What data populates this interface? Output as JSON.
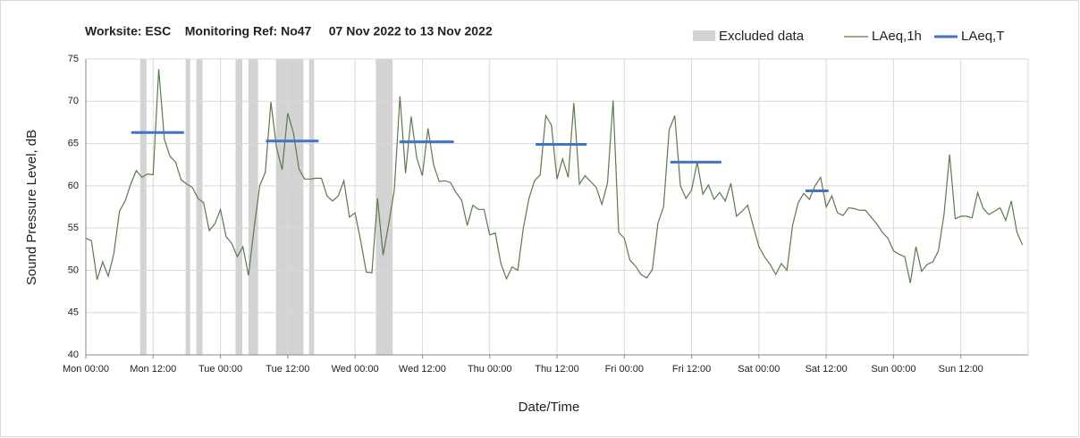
{
  "chart_data": {
    "type": "line",
    "title": "Worksite: ESC    Monitoring Ref: No47     07 Nov 2022 to 13 Nov 2022",
    "xlabel": "Date/Time",
    "ylabel": "Sound Pressure Level, dB",
    "xlim": [
      0,
      168
    ],
    "xticks": [
      {
        "value": 0,
        "label": "Mon 00:00"
      },
      {
        "value": 12,
        "label": "Mon 12:00"
      },
      {
        "value": 24,
        "label": "Tue 00:00"
      },
      {
        "value": 36,
        "label": "Tue 12:00"
      },
      {
        "value": 48,
        "label": "Wed 00:00"
      },
      {
        "value": 60,
        "label": "Wed 12:00"
      },
      {
        "value": 72,
        "label": "Thu 00:00"
      },
      {
        "value": 84,
        "label": "Thu 12:00"
      },
      {
        "value": 96,
        "label": "Fri 00:00"
      },
      {
        "value": 108,
        "label": "Fri 12:00"
      },
      {
        "value": 120,
        "label": "Sat 00:00"
      },
      {
        "value": 132,
        "label": "Sat 12:00"
      },
      {
        "value": 144,
        "label": "Sun 00:00"
      },
      {
        "value": 156,
        "label": "Sun 12:00"
      }
    ],
    "ylim": [
      40,
      75
    ],
    "yticks": [
      40,
      45,
      50,
      55,
      60,
      65,
      70,
      75
    ],
    "grid": true,
    "excluded": {
      "name": "Excluded data",
      "color": "#d3d3d3",
      "ranges": [
        [
          9.7,
          10.8
        ],
        [
          17.8,
          18.6
        ],
        [
          19.7,
          20.8
        ],
        [
          26.7,
          27.9
        ],
        [
          29,
          30.7
        ],
        [
          33.9,
          38.8
        ],
        [
          39.8,
          40.7
        ],
        [
          51.7,
          54.7
        ]
      ]
    },
    "series": [
      {
        "name": "LAeq,1h",
        "color": "#5b7b4b",
        "x": [
          0,
          1,
          2,
          3,
          4,
          5,
          6,
          7,
          8,
          9,
          10,
          11,
          12,
          13,
          14,
          15,
          16,
          17,
          18,
          19,
          20,
          21,
          22,
          23,
          24,
          25,
          26,
          27,
          28,
          29,
          30,
          31,
          32,
          33,
          34,
          35,
          36,
          37,
          38,
          39,
          40,
          41,
          42,
          43,
          44,
          45,
          46,
          47,
          48,
          49,
          50,
          51,
          52,
          53,
          54,
          55,
          56,
          57,
          58,
          59,
          60,
          61,
          62,
          63,
          64,
          65,
          66,
          67,
          68,
          69,
          70,
          71,
          72,
          73,
          74,
          75,
          76,
          77,
          78,
          79,
          80,
          81,
          82,
          83,
          84,
          85,
          86,
          87,
          88,
          89,
          90,
          91,
          92,
          93,
          94,
          95,
          96,
          97,
          98,
          99,
          100,
          101,
          102,
          103,
          104,
          105,
          106,
          107,
          108,
          109,
          110,
          111,
          112,
          113,
          114,
          115,
          116,
          117,
          118,
          119,
          120,
          121,
          122,
          123,
          124,
          125,
          126,
          127,
          128,
          129,
          130,
          131,
          132,
          133,
          134,
          135,
          136,
          137,
          138,
          139,
          140,
          141,
          142,
          143,
          144,
          145,
          146,
          147,
          148,
          149,
          150,
          151,
          152,
          153,
          154,
          155,
          156,
          157,
          158,
          159,
          160,
          161,
          162,
          163,
          164,
          165,
          166,
          167
        ],
        "values": [
          53.8,
          53.5,
          48.9,
          51,
          49.3,
          52,
          57,
          58.2,
          60.2,
          61.8,
          61,
          61.4,
          61.3,
          73.8,
          65.5,
          63.5,
          62.8,
          60.7,
          60.2,
          59.8,
          58.5,
          58,
          54.7,
          55.5,
          57.2,
          54,
          53.2,
          51.6,
          52.8,
          49.4,
          55,
          60,
          61.6,
          69.9,
          64.5,
          61.9,
          68.6,
          66.3,
          62,
          60.8,
          60.8,
          60.9,
          60.9,
          58.8,
          58.2,
          58.8,
          60.6,
          56.3,
          56.8,
          53.5,
          49.8,
          49.7,
          58.5,
          51.8,
          55.5,
          59.5,
          70.6,
          61.5,
          68.2,
          63.3,
          61.2,
          66.8,
          62.5,
          60.5,
          60.6,
          60.4,
          59.2,
          58.3,
          55.3,
          57.7,
          57.2,
          57.2,
          54.2,
          54.4,
          50.8,
          49,
          50.4,
          50,
          55,
          58.5,
          60.6,
          61.3,
          68.3,
          67.2,
          60.8,
          63.2,
          61,
          69.8,
          60.2,
          61.2,
          60.5,
          59.8,
          57.8,
          60.3,
          70.1,
          54.5,
          53.8,
          51.2,
          50.5,
          49.5,
          49.1,
          50.1,
          55.6,
          57.5,
          66.6,
          68.3,
          60,
          58.5,
          59.5,
          62.8,
          59,
          60.1,
          58.4,
          59.2,
          58.2,
          60.3,
          56.4,
          57,
          57.7,
          55.2,
          52.8,
          51.6,
          50.7,
          49.5,
          50.8,
          50,
          55.3,
          58,
          59.1,
          58.4,
          60,
          61,
          57.5,
          58.8,
          56.8,
          56.5,
          57.4,
          57.3,
          57.1,
          57.1,
          56.3,
          55.5,
          54.5,
          53.8,
          52.3,
          51.9,
          51.6,
          48.5,
          52.8,
          49.9,
          50.7,
          51,
          52.3,
          56.6,
          63.7,
          56.1,
          56.4,
          56.4,
          56.2,
          59.2,
          57.3,
          56.6,
          57,
          57.4,
          55.9,
          58.2,
          54.5,
          53
        ]
      }
    ],
    "averages": {
      "name": "LAeq,T",
      "color": "#4472c4",
      "x": [
        [
          8.1,
          17.5
        ],
        [
          32.1,
          41.5
        ],
        [
          55.9,
          65.6
        ],
        [
          80.2,
          89.3
        ],
        [
          104.2,
          113.3
        ],
        [
          128.3,
          132.4
        ]
      ],
      "values": [
        66.3,
        65.3,
        65.2,
        64.9,
        62.8,
        59.4
      ]
    }
  }
}
